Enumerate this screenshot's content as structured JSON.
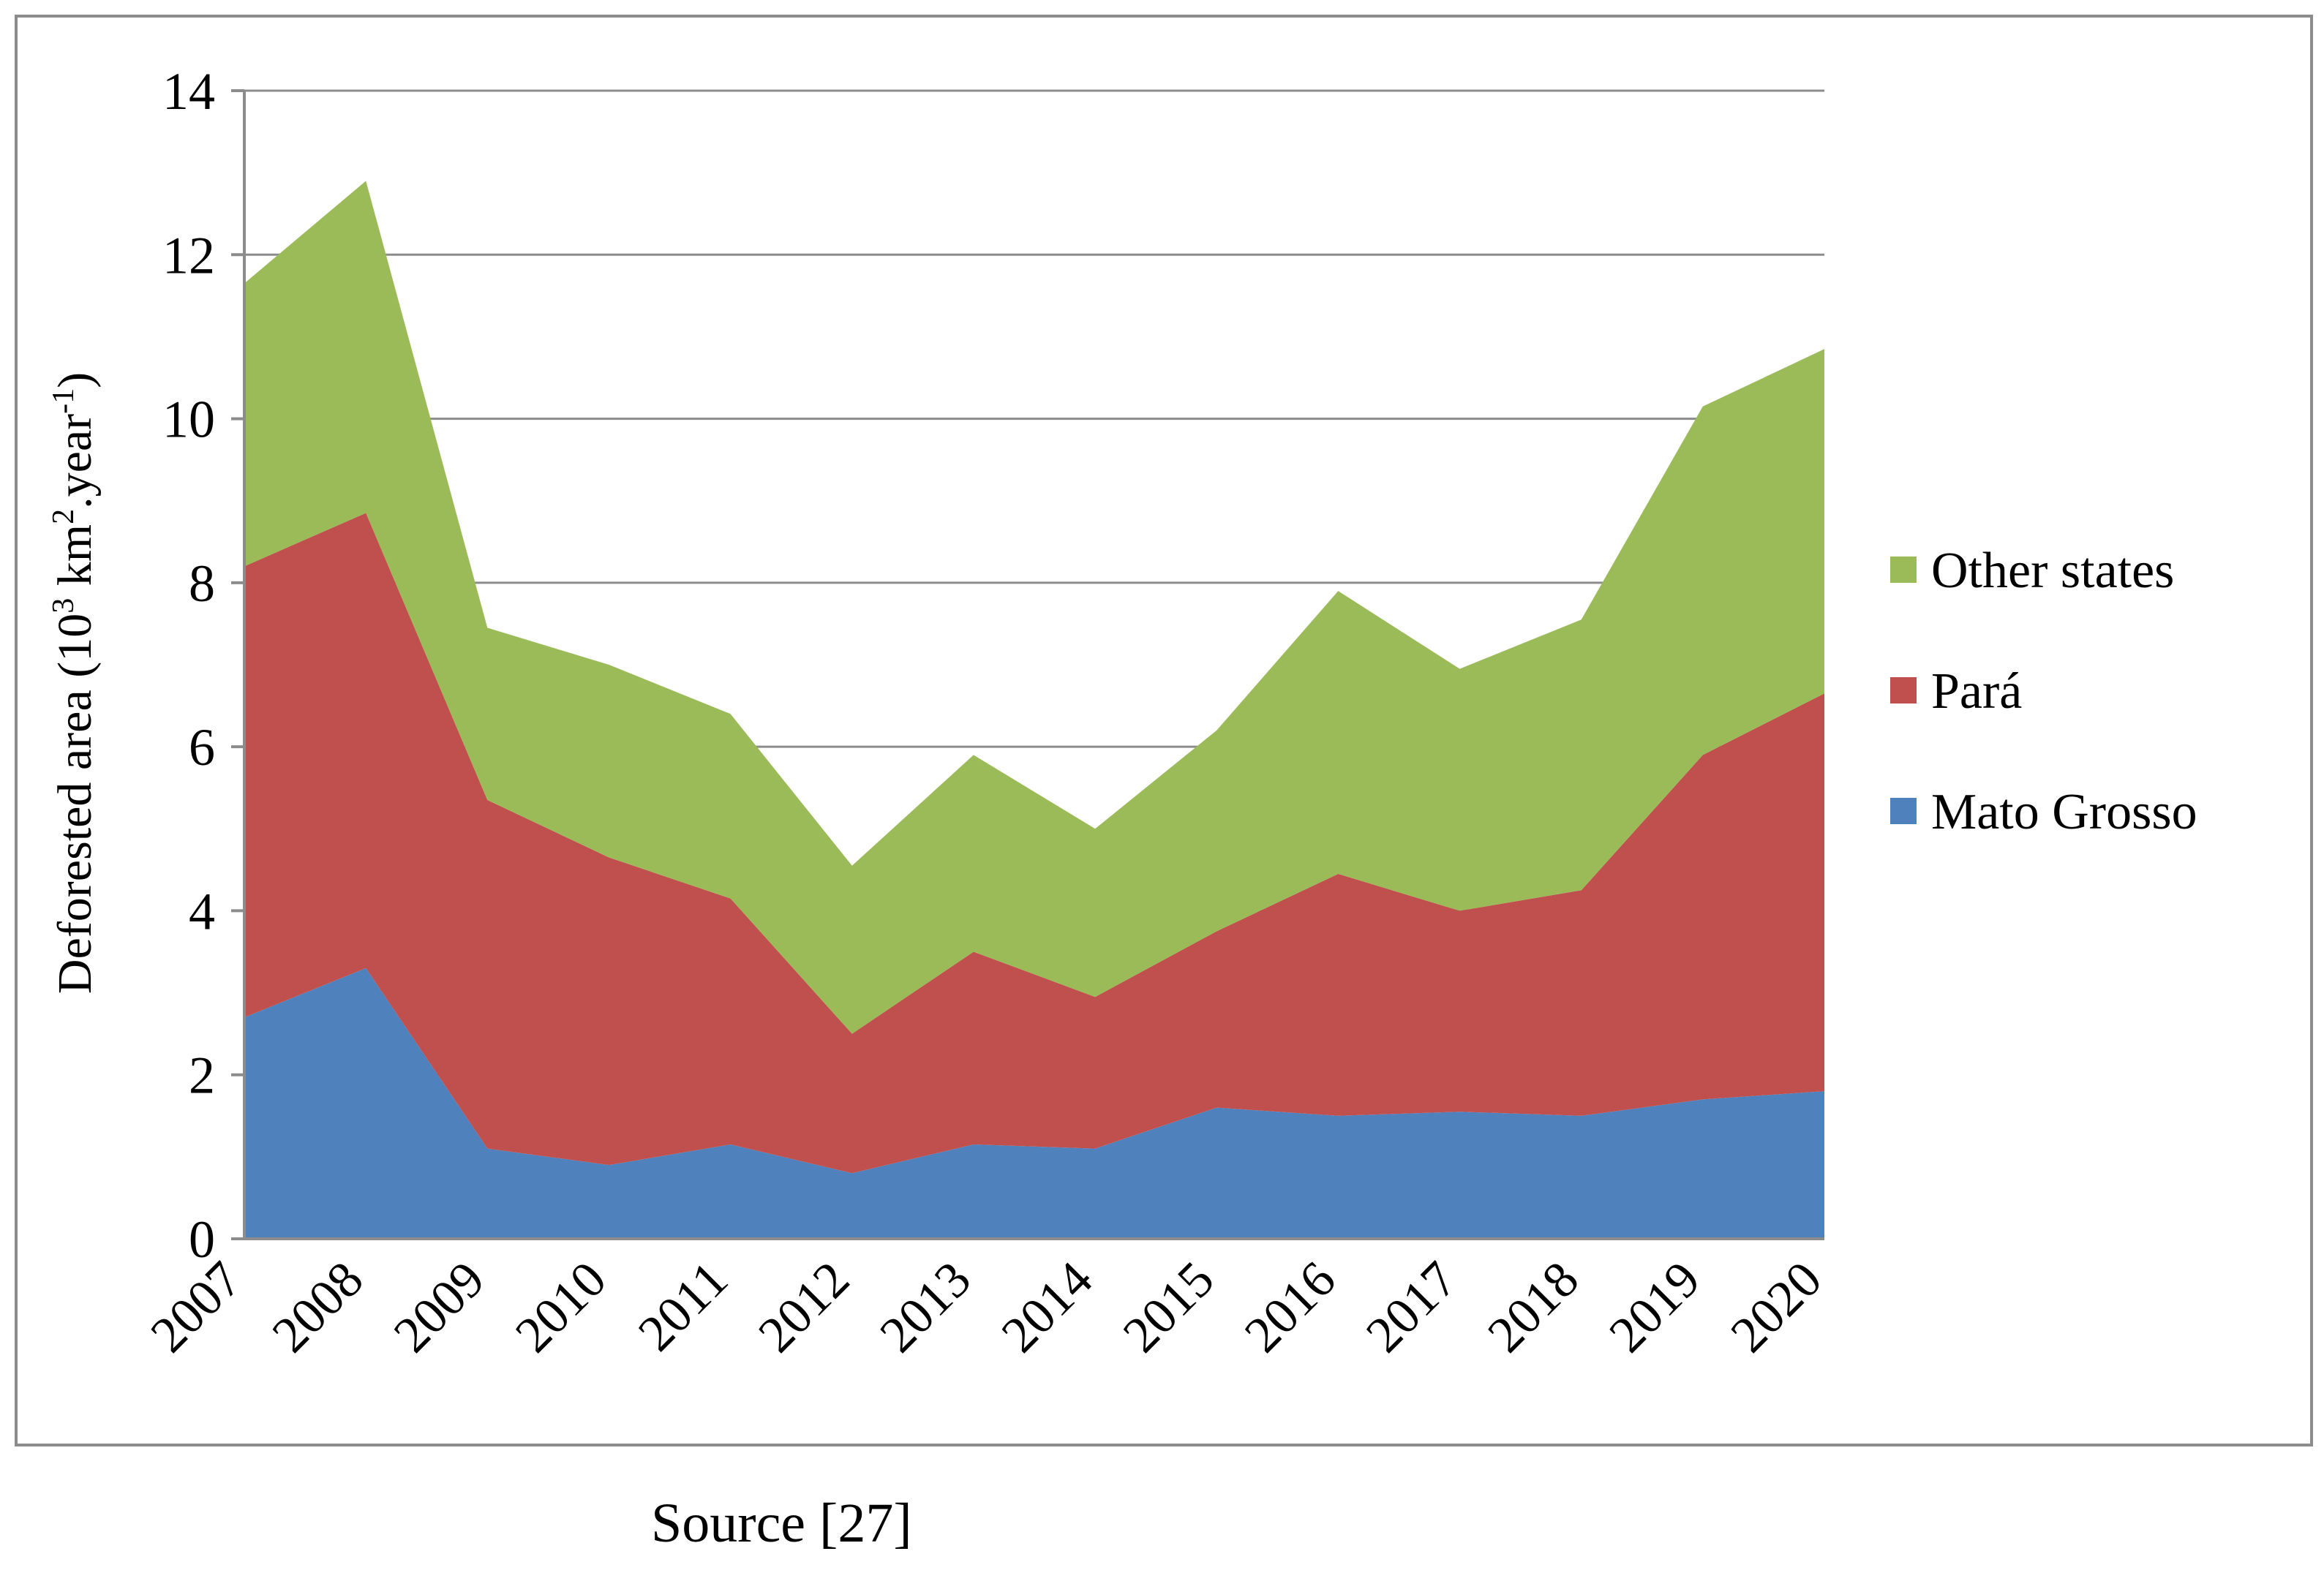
{
  "chart_data": {
    "type": "area",
    "stacked": true,
    "categories": [
      "2007",
      "2008",
      "2009",
      "2010",
      "2011",
      "2012",
      "2013",
      "2014",
      "2015",
      "2016",
      "2017",
      "2018",
      "2019",
      "2020"
    ],
    "series": [
      {
        "name": "Mato Grosso",
        "color": "#4f81bd",
        "values": [
          2.7,
          3.3,
          1.1,
          0.9,
          1.15,
          0.8,
          1.15,
          1.1,
          1.6,
          1.5,
          1.55,
          1.5,
          1.7,
          1.8
        ]
      },
      {
        "name": "Pará",
        "color": "#c0504d",
        "values": [
          5.5,
          5.55,
          4.25,
          3.75,
          3.0,
          1.7,
          2.35,
          1.85,
          2.15,
          2.95,
          2.45,
          2.75,
          4.2,
          4.85
        ]
      },
      {
        "name": "Other states",
        "color": "#9bbb59",
        "values": [
          3.45,
          4.05,
          2.1,
          2.35,
          2.25,
          2.05,
          2.4,
          2.05,
          2.45,
          3.45,
          2.95,
          3.3,
          4.25,
          4.2
        ]
      }
    ],
    "y_axis": {
      "label_prefix": "Deforested area (10",
      "label_sup1": "3",
      "label_mid": " km",
      "label_sup2": "2",
      "label_mid2": ".year",
      "label_sup3": "-1",
      "label_suffix": ")",
      "ylim": [
        0,
        14
      ],
      "ticks": [
        0,
        2,
        4,
        6,
        8,
        10,
        12,
        14
      ]
    },
    "xlabel": "",
    "grid": "horizontal",
    "legend_position": "right",
    "legend_order": [
      "Other states",
      "Pará",
      "Mato Grosso"
    ]
  },
  "source_note": "Source [27]"
}
